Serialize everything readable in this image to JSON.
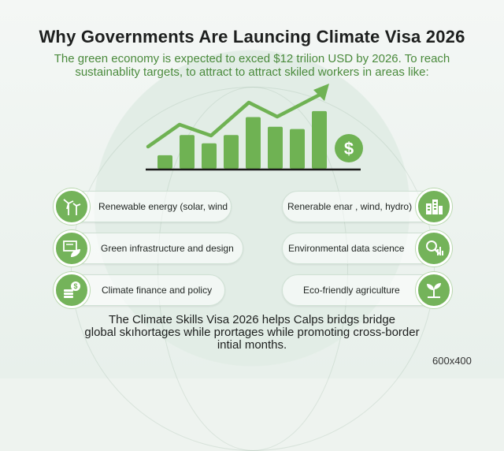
{
  "title": "Why Governments Are Launcing Climate Visa 2026",
  "subtitle_line1": "The green economy is expected to exced $12 trilion USD by 2026. To reach",
  "subtitle_line2": "sustainablity targets, to attract to attract skiled workers in areas like:",
  "chart": {
    "bars": [
      0.18,
      0.45,
      0.34,
      0.45,
      0.69,
      0.56,
      0.53,
      0.77
    ],
    "currency_symbol": "$",
    "accent_color": "#6fb253",
    "baseline_color": "#1b1b1b"
  },
  "areas": {
    "left": [
      {
        "label": "Renewable energy (solar, wind",
        "icon": "wind-turbine-icon"
      },
      {
        "label": "Green infrastructure and design",
        "icon": "blueprint-leaf-icon"
      },
      {
        "label": "Climate finance and policy",
        "icon": "coins-dollar-icon"
      }
    ],
    "right": [
      {
        "label": "Renerable enar , wind, hydro)",
        "icon": "building-icon"
      },
      {
        "label": "Environmental data science",
        "icon": "magnifier-chart-icon"
      },
      {
        "label": "Eco-friendly agriculture",
        "icon": "sprout-icon"
      }
    ]
  },
  "footer_line1": "The Climate Skills Visa 2026 helps Calps bridgs bridge",
  "footer_line2": "global skıhortages while prortages while promoting cross-border",
  "footer_line3": "intial months.",
  "size_label": "600x400",
  "colors": {
    "green": "#74b35a",
    "title": "#1d1f1e",
    "subtitle": "#4a8a3c"
  }
}
